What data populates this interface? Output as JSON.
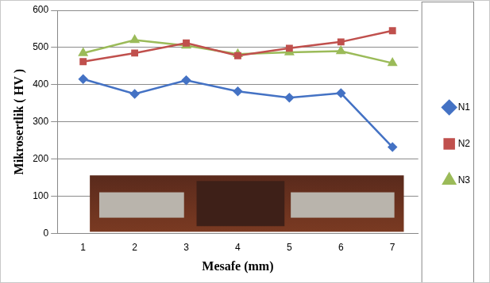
{
  "chart_data": {
    "type": "line",
    "x_label": "Mesafe (mm)",
    "y_label": "Mikrosertlik ( HV )",
    "categories": [
      "1",
      "2",
      "3",
      "4",
      "5",
      "6",
      "7"
    ],
    "series": [
      {
        "name": "N1",
        "color": "#4472c4",
        "marker": "diamond",
        "values": [
          415,
          375,
          412,
          382,
          365,
          377,
          232
        ]
      },
      {
        "name": "N2",
        "color": "#c0504d",
        "marker": "square",
        "values": [
          462,
          485,
          512,
          478,
          498,
          515,
          545
        ]
      },
      {
        "name": "N3",
        "color": "#9bbb59",
        "marker": "triangle",
        "values": [
          485,
          520,
          505,
          482,
          487,
          490,
          458
        ]
      }
    ],
    "ylim": [
      0,
      600
    ],
    "yticks": [
      0,
      100,
      200,
      300,
      400,
      500,
      600
    ],
    "grid": true,
    "legend": "right"
  }
}
